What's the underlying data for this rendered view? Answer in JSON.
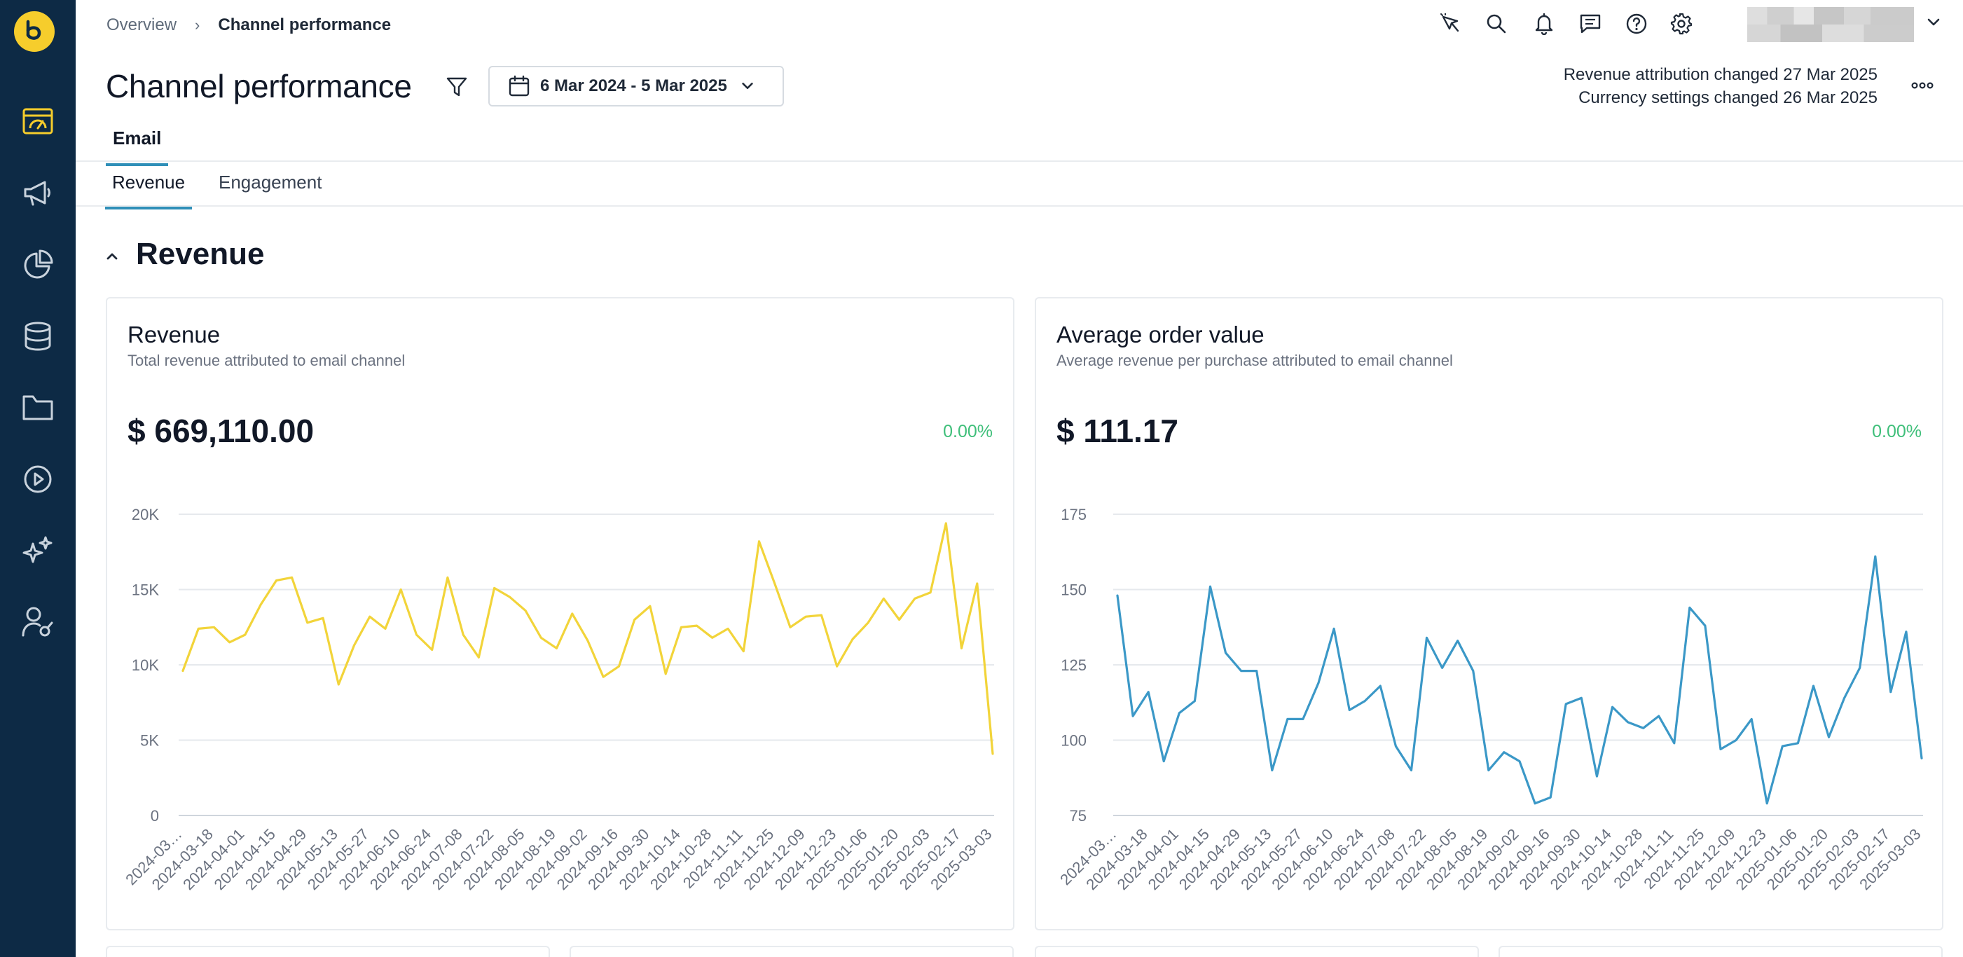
{
  "breadcrumb": {
    "parent": "Overview",
    "separator": "›",
    "current": "Channel performance"
  },
  "header": {
    "title": "Channel performance",
    "date_range": "6 Mar 2024 - 5 Mar 2025",
    "notes": [
      "Revenue attribution changed 27 Mar 2025",
      "Currency settings changed 26 Mar 2025"
    ]
  },
  "tabs": {
    "primary": "Email",
    "secondary": [
      "Revenue",
      "Engagement"
    ]
  },
  "section": {
    "title": "Revenue"
  },
  "colors": {
    "sidebar": "#0d2a45",
    "brand": "#f6cd2c",
    "revenue_line": "#f2d43a",
    "aov_line": "#3b98c7",
    "positive": "#3fbf7a",
    "tab_active": "#2f8fb8"
  },
  "icons": {
    "sidebar": [
      "dashboard-icon",
      "campaigns-icon",
      "analytics-icon",
      "database-icon",
      "folder-icon",
      "play-icon",
      "ai-sparkle-icon",
      "user-settings-icon"
    ],
    "top": [
      "pin-icon",
      "search-icon",
      "bell-icon",
      "chat-icon",
      "help-icon",
      "gear-icon"
    ]
  },
  "cards": [
    {
      "title": "Revenue",
      "subtitle": "Total revenue attributed to email channel",
      "value": "$ 669,110.00",
      "change": "0.00%"
    },
    {
      "title": "Average order value",
      "subtitle": "Average revenue per purchase attributed to email channel",
      "value": "$ 111.17",
      "change": "0.00%"
    }
  ],
  "chart_data": [
    {
      "type": "line",
      "title": "Revenue",
      "ylim": [
        0,
        20000
      ],
      "yticks": [
        0,
        5000,
        10000,
        15000,
        20000
      ],
      "ytick_labels": [
        "0",
        "5K",
        "10K",
        "15K",
        "20K"
      ],
      "xtick_labels": [
        "2024-03…",
        "2024-03-18",
        "2024-04-01",
        "2024-04-15",
        "2024-04-29",
        "2024-05-13",
        "2024-05-27",
        "2024-06-10",
        "2024-06-24",
        "2024-07-08",
        "2024-07-22",
        "2024-08-05",
        "2024-08-19",
        "2024-09-02",
        "2024-09-16",
        "2024-09-30",
        "2024-10-14",
        "2024-10-28",
        "2024-11-11",
        "2024-11-25",
        "2024-12-09",
        "2024-12-23",
        "2025-01-06",
        "2025-01-20",
        "2025-02-03",
        "2025-02-17",
        "2025-03-03"
      ],
      "grid": true,
      "values": [
        9600,
        12400,
        12500,
        11500,
        12000,
        14000,
        15600,
        15800,
        12800,
        13100,
        8700,
        11300,
        13200,
        12400,
        15000,
        12000,
        11000,
        15800,
        12000,
        10500,
        15100,
        14500,
        13600,
        11800,
        11100,
        13400,
        11600,
        9200,
        9900,
        13000,
        13900,
        9400,
        12500,
        12600,
        11800,
        12400,
        10900,
        18200,
        15400,
        12500,
        13200,
        13300,
        9900,
        11700,
        12800,
        14400,
        13000,
        14400,
        14800,
        19400,
        11100,
        15400,
        4100
      ]
    },
    {
      "type": "line",
      "title": "Average order value",
      "ylim": [
        75,
        175
      ],
      "yticks": [
        75,
        100,
        125,
        150,
        175
      ],
      "ytick_labels": [
        "75",
        "100",
        "125",
        "150",
        "175"
      ],
      "xtick_labels": [
        "2024-03…",
        "2024-03-18",
        "2024-04-01",
        "2024-04-15",
        "2024-04-29",
        "2024-05-13",
        "2024-05-27",
        "2024-06-10",
        "2024-06-24",
        "2024-07-08",
        "2024-07-22",
        "2024-08-05",
        "2024-08-19",
        "2024-09-02",
        "2024-09-16",
        "2024-09-30",
        "2024-10-14",
        "2024-10-28",
        "2024-11-11",
        "2024-11-25",
        "2024-12-09",
        "2024-12-23",
        "2025-01-06",
        "2025-01-20",
        "2025-02-03",
        "2025-02-17",
        "2025-03-03"
      ],
      "grid": true,
      "values": [
        148,
        108,
        116,
        93,
        109,
        113,
        151,
        129,
        123,
        123,
        90,
        107,
        107,
        119,
        137,
        110,
        113,
        118,
        98,
        90,
        134,
        124,
        133,
        123,
        90,
        96,
        93,
        79,
        81,
        112,
        114,
        88,
        111,
        106,
        104,
        108,
        99,
        144,
        138,
        97,
        100,
        107,
        79,
        98,
        99,
        118,
        101,
        114,
        124,
        161,
        116,
        136,
        94
      ]
    }
  ]
}
